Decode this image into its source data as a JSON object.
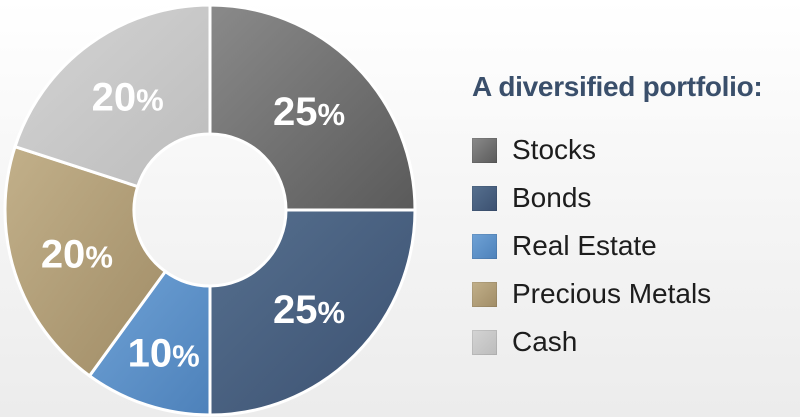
{
  "chart_data": {
    "type": "pie",
    "title": "A diversified portfolio:",
    "slices": [
      {
        "label": "Stocks",
        "value": 25,
        "display": "25",
        "color": "#6e6e6e"
      },
      {
        "label": "Bonds",
        "value": 25,
        "display": "25",
        "color": "#48607f"
      },
      {
        "label": "Real Estate",
        "value": 10,
        "display": "10",
        "color": "#5f93c9"
      },
      {
        "label": "Precious Metals",
        "value": 20,
        "display": "20",
        "color": "#b3a07a"
      },
      {
        "label": "Cash",
        "value": 20,
        "display": "20",
        "color": "#c8c8c8"
      }
    ],
    "percent_sign": "%",
    "legend_position": "right",
    "donut": true
  },
  "legend": {
    "title": "A diversified portfolio:",
    "items": [
      {
        "label": "Stocks",
        "color": "#6e6e6e"
      },
      {
        "label": "Bonds",
        "color": "#48607f"
      },
      {
        "label": "Real Estate",
        "color": "#5f93c9"
      },
      {
        "label": "Precious Metals",
        "color": "#b3a07a"
      },
      {
        "label": "Cash",
        "color": "#c8c8c8"
      }
    ]
  }
}
